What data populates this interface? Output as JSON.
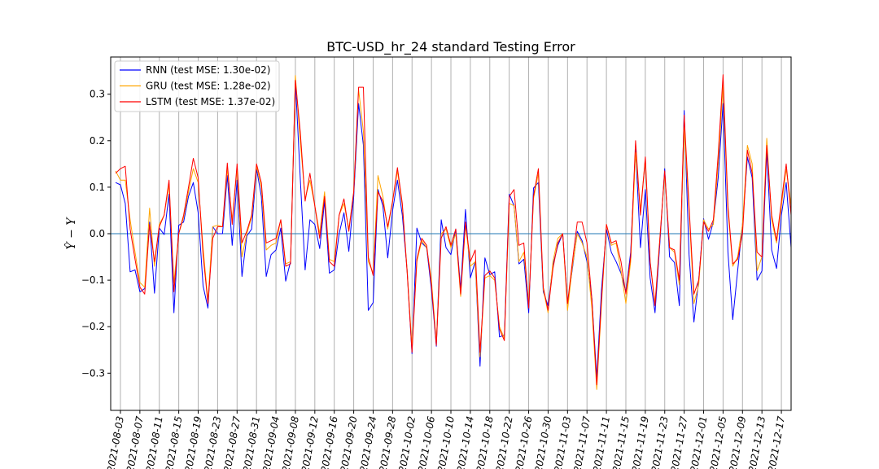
{
  "chart_data": {
    "type": "line",
    "title": "BTC-USD_hr_24 standard Testing Error",
    "xlabel": "",
    "ylabel": "Ŷ − Y",
    "ylim": [
      -0.38,
      0.38
    ],
    "yticks": [
      -0.3,
      -0.2,
      -0.1,
      0.0,
      0.1,
      0.2,
      0.3
    ],
    "ytick_labels": [
      "−0.3",
      "−0.2",
      "−0.1",
      "0.0",
      "0.1",
      "0.2",
      "0.3"
    ],
    "x_start": "2021-08-02",
    "x_end": "2021-12-19",
    "xtick_labels": [
      "2021-08-03",
      "2021-08-07",
      "2021-08-11",
      "2021-08-15",
      "2021-08-19",
      "2021-08-23",
      "2021-08-27",
      "2021-08-31",
      "2021-09-04",
      "2021-09-08",
      "2021-09-12",
      "2021-09-16",
      "2021-09-20",
      "2021-09-24",
      "2021-09-28",
      "2021-10-02",
      "2021-10-06",
      "2021-10-10",
      "2021-10-14",
      "2021-10-18",
      "2021-10-22",
      "2021-10-26",
      "2021-10-30",
      "2021-11-03",
      "2021-11-07",
      "2021-11-11",
      "2021-11-15",
      "2021-11-19",
      "2021-11-23",
      "2021-11-27",
      "2021-12-01",
      "2021-12-05",
      "2021-12-09",
      "2021-12-13",
      "2021-12-17"
    ],
    "grid": "vertical",
    "zero_line": true,
    "legend_position": "top-left",
    "series": [
      {
        "name": "RNN (test MSE: 1.30e-02)",
        "color": "#0000ff",
        "values": [
          0.11,
          0.105,
          0.065,
          -0.082,
          -0.078,
          -0.125,
          -0.118,
          0.025,
          -0.128,
          0.012,
          -0.002,
          0.085,
          -0.17,
          0.018,
          0.025,
          0.08,
          0.11,
          0.045,
          -0.112,
          -0.16,
          0.015,
          0.0,
          0.0,
          0.125,
          -0.025,
          0.115,
          -0.092,
          -0.005,
          0.01,
          0.14,
          0.08,
          -0.092,
          -0.045,
          -0.035,
          0.012,
          -0.102,
          -0.06,
          0.33,
          0.12,
          -0.078,
          0.03,
          0.02,
          -0.032,
          0.07,
          -0.085,
          -0.078,
          0.0,
          0.045,
          -0.038,
          0.08,
          0.28,
          0.19,
          -0.165,
          -0.148,
          0.095,
          0.06,
          -0.052,
          0.05,
          0.115,
          0.04,
          -0.08,
          -0.258,
          0.012,
          -0.02,
          -0.03,
          -0.12,
          -0.242,
          0.03,
          -0.03,
          -0.045,
          0.01,
          -0.12,
          0.052,
          -0.095,
          -0.06,
          -0.285,
          -0.052,
          -0.088,
          -0.082,
          -0.222,
          -0.218,
          0.085,
          0.06,
          -0.065,
          -0.055,
          -0.17,
          0.098,
          0.11,
          -0.125,
          -0.155,
          -0.068,
          -0.025,
          0.0,
          -0.15,
          -0.075,
          0.005,
          -0.015,
          -0.06,
          -0.14,
          -0.31,
          -0.12,
          0.01,
          -0.04,
          -0.06,
          -0.085,
          -0.125,
          -0.04,
          0.185,
          -0.03,
          0.095,
          -0.095,
          -0.17,
          -0.02,
          0.14,
          -0.05,
          -0.062,
          -0.155,
          0.265,
          -0.045,
          -0.19,
          -0.1,
          0.032,
          -0.012,
          0.025,
          0.12,
          0.28,
          -0.04,
          -0.185,
          -0.08,
          0.02,
          0.165,
          0.12,
          -0.1,
          -0.08,
          0.18,
          -0.035,
          -0.075,
          0.04,
          0.11,
          -0.03
        ]
      },
      {
        "name": "GRU (test MSE: 1.28e-02)",
        "color": "#ffa500",
        "values": [
          0.135,
          0.115,
          0.115,
          0.03,
          -0.04,
          -0.105,
          -0.115,
          0.055,
          -0.07,
          0.02,
          0.04,
          0.105,
          -0.105,
          0.0,
          0.035,
          0.09,
          0.14,
          0.11,
          -0.03,
          -0.145,
          0.015,
          0.018,
          0.015,
          0.14,
          0.03,
          0.14,
          -0.05,
          0.0,
          0.035,
          0.145,
          0.1,
          -0.035,
          -0.025,
          -0.02,
          0.03,
          -0.065,
          -0.06,
          0.34,
          0.2,
          0.075,
          0.115,
          0.06,
          0.0,
          0.09,
          -0.055,
          -0.06,
          0.04,
          0.065,
          0.01,
          0.09,
          0.31,
          0.22,
          -0.06,
          -0.085,
          0.125,
          0.08,
          0.01,
          0.07,
          0.135,
          0.06,
          -0.08,
          -0.245,
          -0.06,
          -0.015,
          -0.03,
          -0.1,
          -0.235,
          0.0,
          0.01,
          -0.03,
          0.0,
          -0.135,
          0.02,
          -0.07,
          -0.06,
          -0.265,
          -0.095,
          -0.09,
          -0.1,
          -0.2,
          -0.225,
          0.065,
          0.06,
          -0.06,
          -0.04,
          -0.15,
          0.075,
          0.13,
          -0.12,
          -0.17,
          -0.06,
          -0.01,
          0.0,
          -0.165,
          -0.07,
          0.0,
          -0.02,
          -0.05,
          -0.16,
          -0.335,
          -0.15,
          0.02,
          -0.025,
          -0.02,
          -0.08,
          -0.15,
          -0.06,
          0.175,
          0.05,
          0.16,
          -0.06,
          -0.15,
          -0.01,
          0.13,
          -0.03,
          -0.04,
          -0.11,
          0.23,
          0.05,
          -0.15,
          -0.11,
          0.03,
          0.01,
          0.02,
          0.15,
          0.32,
          0.05,
          -0.07,
          -0.05,
          0.02,
          0.19,
          0.15,
          -0.08,
          -0.05,
          0.205,
          0.03,
          -0.02,
          0.06,
          0.14,
          0.06
        ]
      },
      {
        "name": "LSTM (test MSE: 1.37e-02)",
        "color": "#ff0000",
        "values": [
          0.13,
          0.14,
          0.145,
          0.01,
          -0.055,
          -0.115,
          -0.13,
          0.02,
          -0.06,
          0.015,
          0.04,
          0.115,
          -0.125,
          0.0,
          0.04,
          0.1,
          0.162,
          0.12,
          -0.045,
          -0.15,
          -0.01,
          0.015,
          0.015,
          0.152,
          0.02,
          0.15,
          -0.02,
          0.005,
          0.04,
          0.15,
          0.11,
          -0.02,
          -0.015,
          -0.01,
          0.03,
          -0.07,
          -0.065,
          0.33,
          0.22,
          0.07,
          0.13,
          0.06,
          -0.01,
          0.08,
          -0.06,
          -0.07,
          0.04,
          0.075,
          0.005,
          0.09,
          0.315,
          0.315,
          -0.05,
          -0.09,
          0.09,
          0.07,
          0.015,
          0.07,
          0.142,
          0.065,
          -0.085,
          -0.255,
          -0.055,
          -0.01,
          -0.025,
          -0.11,
          -0.24,
          -0.01,
          0.015,
          -0.025,
          0.01,
          -0.13,
          0.025,
          -0.06,
          -0.035,
          -0.255,
          -0.09,
          -0.08,
          -0.095,
          -0.205,
          -0.23,
          0.08,
          0.095,
          -0.025,
          -0.02,
          -0.16,
          0.08,
          0.14,
          -0.115,
          -0.165,
          -0.075,
          -0.02,
          0.0,
          -0.15,
          -0.06,
          0.025,
          0.025,
          -0.02,
          -0.14,
          -0.325,
          -0.14,
          0.02,
          -0.02,
          -0.015,
          -0.06,
          -0.13,
          -0.05,
          0.2,
          0.04,
          0.165,
          -0.06,
          -0.155,
          -0.01,
          0.135,
          -0.03,
          -0.035,
          -0.1,
          0.255,
          0.06,
          -0.13,
          -0.1,
          0.025,
          0.005,
          0.03,
          0.17,
          0.342,
          0.06,
          -0.065,
          -0.055,
          0.0,
          0.18,
          0.13,
          -0.04,
          -0.05,
          0.19,
          0.04,
          -0.015,
          0.07,
          0.15,
          0.04
        ]
      }
    ]
  }
}
